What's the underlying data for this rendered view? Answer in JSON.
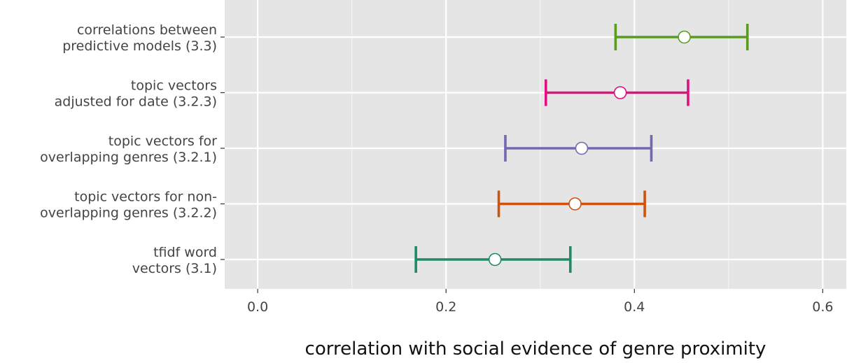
{
  "chart_data": {
    "type": "errorbar",
    "title": "",
    "xlabel": "correlation with social evidence of genre proximity",
    "ylabel": "",
    "xlim": [
      -0.035,
      0.625
    ],
    "xticks": [
      0.0,
      0.2,
      0.4,
      0.6
    ],
    "xtick_labels": [
      "0.0",
      "0.2",
      "0.4",
      "0.6"
    ],
    "grid": true,
    "legend": "none",
    "categories": [
      {
        "label": [
          "correlations between",
          "predictive models (3.3)"
        ],
        "center": 0.453,
        "low": 0.38,
        "high": 0.52,
        "color": "#5b9c20"
      },
      {
        "label": [
          "topic vectors",
          "adjusted for date (3.2.3)"
        ],
        "center": 0.385,
        "low": 0.306,
        "high": 0.457,
        "color": "#e0107f"
      },
      {
        "label": [
          "topic vectors for",
          "overlapping genres (3.2.1)"
        ],
        "center": 0.344,
        "low": 0.263,
        "high": 0.418,
        "color": "#7468b2"
      },
      {
        "label": [
          "topic vectors for non-",
          "overlapping genres (3.2.2)"
        ],
        "center": 0.337,
        "low": 0.256,
        "high": 0.411,
        "color": "#d1520c"
      },
      {
        "label": [
          "tfidf word",
          "vectors (3.1)"
        ],
        "center": 0.252,
        "low": 0.168,
        "high": 0.332,
        "color": "#1f8a6a"
      }
    ]
  }
}
